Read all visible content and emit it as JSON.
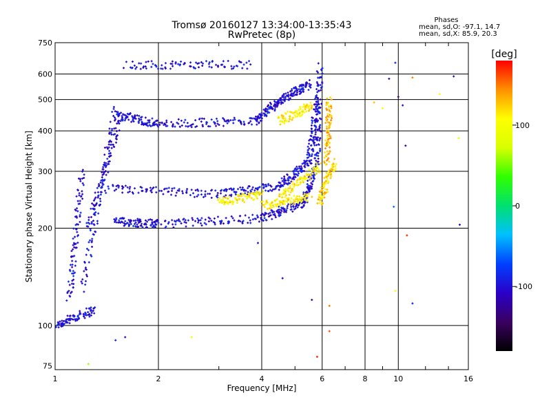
{
  "chart_data": {
    "type": "scatter",
    "title": "Tromsø 20160127 13:34:00-13:35:43",
    "subtitle": "RwPretec (8p)",
    "xlabel": "Frequency [MHz]",
    "ylabel": "Stationary phase Virtual Height [km]",
    "x_scale": "log",
    "y_scale": "log",
    "xlim": [
      1,
      16
    ],
    "ylim": [
      73,
      750
    ],
    "x_ticks": [
      1,
      2,
      4,
      6,
      8,
      10,
      16
    ],
    "y_ticks": [
      75,
      100,
      200,
      300,
      400,
      500,
      600,
      750
    ],
    "grid": true,
    "stats": {
      "heading": "Phases",
      "line1": "mean, sd,O: -97.1, 14.7",
      "line2": "mean, sd,X:  85.9, 20.3"
    },
    "colorbar": {
      "label": "[deg]",
      "range": [
        -180,
        180
      ],
      "ticks": [
        100,
        0,
        -100
      ],
      "stops": [
        "#000000",
        "#3a0060",
        "#2a00c8",
        "#0040ff",
        "#00c0ff",
        "#00e070",
        "#30ff00",
        "#d8ff00",
        "#ffff00",
        "#ff9000",
        "#ff0000"
      ]
    },
    "series": [
      {
        "traces": [
          {
            "x0": 1.0,
            "x1": 1.3,
            "y0": 100,
            "y1": 112,
            "ph": -100
          },
          {
            "x0": 1.1,
            "x1": 1.2,
            "y0": 120,
            "y1": 300,
            "ph": -100
          },
          {
            "x0": 1.2,
            "x1": 1.5,
            "y0": 130,
            "y1": 470,
            "ph": -100
          },
          {
            "x0": 1.25,
            "x1": 1.55,
            "y0": 200,
            "y1": 440,
            "ph": -100
          },
          {
            "x0": 1.5,
            "x1": 2.0,
            "y0": 210,
            "y1": 206,
            "ph": -100
          },
          {
            "x0": 2.0,
            "x1": 4.0,
            "y0": 206,
            "y1": 215,
            "ph": -100
          },
          {
            "x0": 4.0,
            "x1": 5.3,
            "y0": 215,
            "y1": 240,
            "ph": -100
          },
          {
            "x0": 5.3,
            "x1": 5.8,
            "y0": 240,
            "y1": 320,
            "ph": -100
          },
          {
            "x0": 5.8,
            "x1": 5.9,
            "y0": 320,
            "y1": 630,
            "ph": -100
          },
          {
            "x0": 1.4,
            "x1": 3.0,
            "y0": 265,
            "y1": 255,
            "ph": -100
          },
          {
            "x0": 3.0,
            "x1": 4.5,
            "y0": 255,
            "y1": 270,
            "ph": -95
          },
          {
            "x0": 4.5,
            "x1": 5.5,
            "y0": 270,
            "y1": 320,
            "ph": -100
          },
          {
            "x0": 5.5,
            "x1": 5.8,
            "y0": 320,
            "y1": 500,
            "ph": -100
          },
          {
            "x0": 1.5,
            "x1": 2.0,
            "y0": 450,
            "y1": 420,
            "ph": -100
          },
          {
            "x0": 2.0,
            "x1": 3.8,
            "y0": 420,
            "y1": 430,
            "ph": -100
          },
          {
            "x0": 3.8,
            "x1": 4.6,
            "y0": 430,
            "y1": 500,
            "ph": -100
          },
          {
            "x0": 4.6,
            "x1": 5.5,
            "y0": 500,
            "y1": 560,
            "ph": -100
          },
          {
            "x0": 1.6,
            "x1": 3.7,
            "y0": 640,
            "y1": 640,
            "ph": -100
          },
          {
            "x0": 4.0,
            "x1": 5.5,
            "y0": 235,
            "y1": 250,
            "ph": 110
          },
          {
            "x0": 4.5,
            "x1": 5.9,
            "y0": 250,
            "y1": 310,
            "ph": 110
          },
          {
            "x0": 5.9,
            "x1": 6.5,
            "y0": 240,
            "y1": 320,
            "ph": 120
          },
          {
            "x0": 6.2,
            "x1": 6.3,
            "y0": 320,
            "y1": 500,
            "ph": 130
          },
          {
            "x0": 4.5,
            "x1": 5.6,
            "y0": 430,
            "y1": 480,
            "ph": 110
          },
          {
            "x0": 3.0,
            "x1": 4.0,
            "y0": 240,
            "y1": 255,
            "ph": 110
          }
        ],
        "scatter": [
          {
            "x": 10.0,
            "y": 510,
            "ph": -130
          },
          {
            "x": 10.3,
            "y": 480,
            "ph": -110
          },
          {
            "x": 10.5,
            "y": 360,
            "ph": -120
          },
          {
            "x": 9.4,
            "y": 580,
            "ph": -110
          },
          {
            "x": 9.8,
            "y": 650,
            "ph": -90
          },
          {
            "x": 11.0,
            "y": 585,
            "ph": 150
          },
          {
            "x": 13.2,
            "y": 520,
            "ph": 100
          },
          {
            "x": 14.5,
            "y": 590,
            "ph": -120
          },
          {
            "x": 15.0,
            "y": 380,
            "ph": 90
          },
          {
            "x": 15.1,
            "y": 205,
            "ph": -110
          },
          {
            "x": 10.6,
            "y": 190,
            "ph": 170
          },
          {
            "x": 9.7,
            "y": 233,
            "ph": -60
          },
          {
            "x": 9.8,
            "y": 128,
            "ph": 100
          },
          {
            "x": 11.0,
            "y": 117,
            "ph": -90
          },
          {
            "x": 6.3,
            "y": 115,
            "ph": 150
          },
          {
            "x": 6.3,
            "y": 96,
            "ph": 160
          },
          {
            "x": 5.8,
            "y": 80,
            "ph": 170
          },
          {
            "x": 5.6,
            "y": 120,
            "ph": -130
          },
          {
            "x": 4.6,
            "y": 140,
            "ph": -110
          },
          {
            "x": 3.9,
            "y": 180,
            "ph": -110
          },
          {
            "x": 2.5,
            "y": 92,
            "ph": 100
          },
          {
            "x": 1.6,
            "y": 92,
            "ph": -100
          },
          {
            "x": 1.5,
            "y": 90,
            "ph": -90
          },
          {
            "x": 1.25,
            "y": 76,
            "ph": 60
          },
          {
            "x": 9.0,
            "y": 470,
            "ph": 100
          },
          {
            "x": 8.5,
            "y": 490,
            "ph": 130
          }
        ]
      }
    ]
  }
}
